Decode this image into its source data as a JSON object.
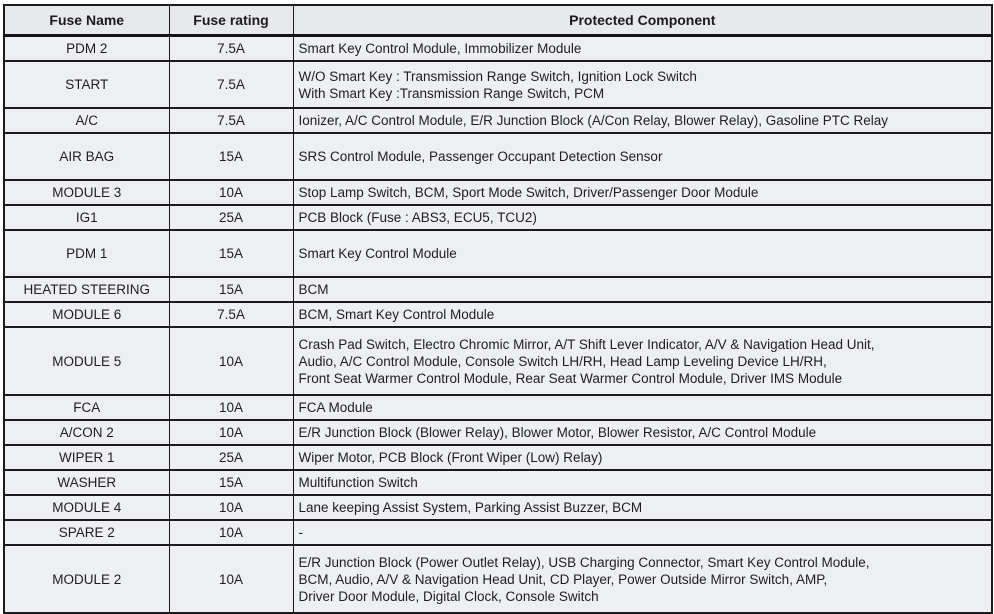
{
  "table": {
    "columns": [
      {
        "label": "Fuse Name"
      },
      {
        "label": "Fuse rating"
      },
      {
        "label": "Protected Component"
      }
    ],
    "rows": [
      {
        "name": "PDM 2",
        "rating": "7.5A",
        "component": "Smart Key Control Module, Immobilizer Module",
        "size": 1
      },
      {
        "name": "START",
        "rating": "7.5A",
        "component": "W/O Smart Key : Transmission Range Switch, Ignition Lock Switch\nWith Smart Key :Transmission Range Switch, PCM",
        "size": 2
      },
      {
        "name": "A/C",
        "rating": "7.5A",
        "component": "Ionizer, A/C Control Module, E/R Junction Block (A/Con Relay, Blower Relay), Gasoline PTC Relay",
        "size": 1
      },
      {
        "name": "AIR BAG",
        "rating": "15A",
        "component": "SRS Control Module, Passenger Occupant Detection Sensor",
        "size": 2
      },
      {
        "name": "MODULE 3",
        "rating": "10A",
        "component": "Stop Lamp Switch, BCM, Sport Mode Switch, Driver/Passenger Door Module",
        "size": 1
      },
      {
        "name": "IG1",
        "rating": "25A",
        "component": "PCB Block (Fuse : ABS3, ECU5, TCU2)",
        "size": 1
      },
      {
        "name": "PDM 1",
        "rating": "15A",
        "component": "Smart Key Control Module",
        "size": 2
      },
      {
        "name": "HEATED STEERING",
        "rating": "15A",
        "component": "BCM",
        "size": 1
      },
      {
        "name": "MODULE 6",
        "rating": "7.5A",
        "component": "BCM, Smart Key Control Module",
        "size": 1
      },
      {
        "name": "MODULE 5",
        "rating": "10A",
        "component": "Crash Pad Switch, Electro Chromic Mirror, A/T Shift Lever Indicator, A/V & Navigation Head Unit,\nAudio, A/C Control Module, Console Switch LH/RH, Head Lamp Leveling Device LH/RH,\nFront Seat Warmer Control Module, Rear Seat Warmer Control Module, Driver IMS Module",
        "size": 3
      },
      {
        "name": "FCA",
        "rating": "10A",
        "component": "FCA Module",
        "size": 1
      },
      {
        "name": "A/CON 2",
        "rating": "10A",
        "component": "E/R Junction Block (Blower Relay), Blower Motor, Blower Resistor, A/C Control Module",
        "size": 1
      },
      {
        "name": "WIPER 1",
        "rating": "25A",
        "component": "Wiper Motor, PCB Block (Front Wiper (Low) Relay)",
        "size": 1
      },
      {
        "name": "WASHER",
        "rating": "15A",
        "component": "Multifunction Switch",
        "size": 1
      },
      {
        "name": "MODULE 4",
        "rating": "10A",
        "component": "Lane keeping Assist System, Parking Assist Buzzer, BCM",
        "size": 1
      },
      {
        "name": "SPARE 2",
        "rating": "10A",
        "component": "-",
        "size": 1
      },
      {
        "name": "MODULE 2",
        "rating": "10A",
        "component": "E/R Junction Block (Power Outlet Relay), USB Charging Connector, Smart Key Control Module,\nBCM, Audio, A/V & Navigation Head Unit, CD Player, Power Outside Mirror Switch, AMP,\nDriver Door Module, Digital Clock, Console Switch",
        "size": 3
      }
    ]
  },
  "colors": {
    "border": "#1b1b1b",
    "cell_background": "#edeff2",
    "header_background": "#e7e9ed",
    "text": "#1e1e1e"
  }
}
